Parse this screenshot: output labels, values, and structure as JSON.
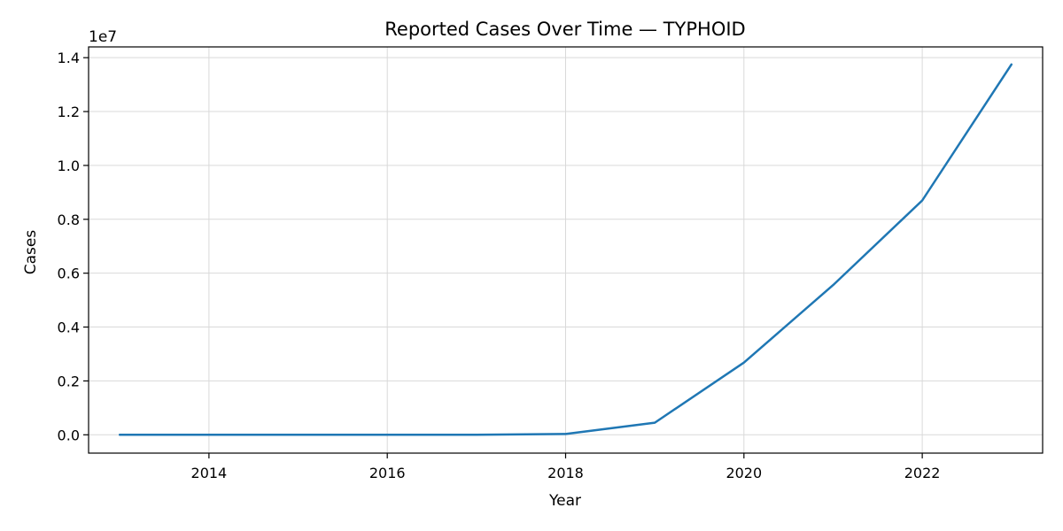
{
  "chart_data": {
    "type": "line",
    "title": "Reported Cases Over Time — TYPHOID",
    "xlabel": "Year",
    "ylabel": "Cases",
    "y_offset_label": "1e7",
    "xlim": [
      2012.65,
      2023.35
    ],
    "ylim": [
      -680000,
      14400000
    ],
    "x_ticks": [
      2014,
      2016,
      2018,
      2020,
      2022
    ],
    "x_tick_labels": [
      "2014",
      "2016",
      "2018",
      "2020",
      "2022"
    ],
    "y_ticks": [
      0,
      2000000,
      4000000,
      6000000,
      8000000,
      10000000,
      12000000,
      14000000
    ],
    "y_tick_labels": [
      "0.0",
      "0.2",
      "0.4",
      "0.6",
      "0.8",
      "1.0",
      "1.2",
      "1.4"
    ],
    "grid": true,
    "series": [
      {
        "color": "#1f77b4",
        "x": [
          2013,
          2014,
          2015,
          2016,
          2017,
          2018,
          2019,
          2020,
          2021,
          2022,
          2023
        ],
        "y": [
          0,
          0,
          0,
          0,
          0,
          30000,
          450000,
          2680000,
          5560000,
          8700000,
          13750000
        ]
      }
    ]
  }
}
